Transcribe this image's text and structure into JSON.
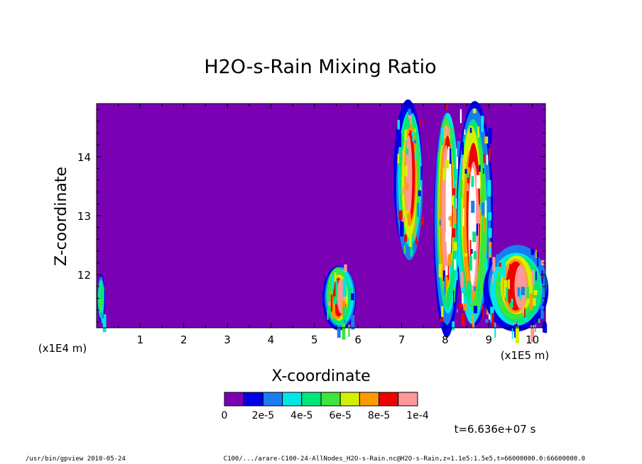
{
  "chart_data": {
    "type": "heatmap",
    "title": "H2O-s-Rain Mixing Ratio",
    "xlabel": "X-coordinate",
    "ylabel": "Z-coordinate",
    "x_unit_label": "(x1E5 m)",
    "y_unit_label": "(x1E4 m)",
    "xlim": [
      0,
      10.3
    ],
    "ylim": [
      11.1,
      14.9
    ],
    "x_ticks": [
      1,
      2,
      3,
      4,
      5,
      6,
      7,
      8,
      9,
      10
    ],
    "y_ticks": [
      12,
      13,
      14
    ],
    "colorbar": {
      "colors": [
        "#7a00b4",
        "#0000e6",
        "#1a7cf0",
        "#00e6e6",
        "#00e67a",
        "#3ce63c",
        "#d2f000",
        "#ff9a00",
        "#f00000",
        "#ff9898"
      ],
      "tick_labels": [
        "0",
        "2e-5",
        "4e-5",
        "6e-5",
        "8e-5",
        "1e-4"
      ],
      "above_max_color": "#ffffff"
    },
    "regions": [
      {
        "x": [
          0.05,
          0.15
        ],
        "z": [
          11.2,
          12.0
        ],
        "max_level": 5
      },
      {
        "x": [
          5.25,
          5.9
        ],
        "z": [
          11.1,
          12.2
        ],
        "max_level": 9
      },
      {
        "x": [
          6.9,
          7.45
        ],
        "z": [
          12.3,
          14.9
        ],
        "max_level": 9
      },
      {
        "x": [
          7.8,
          8.3
        ],
        "z": [
          11.1,
          14.9
        ],
        "max_level": 10
      },
      {
        "x": [
          8.3,
          9.0
        ],
        "z": [
          11.1,
          14.9
        ],
        "max_level": 10
      },
      {
        "x": [
          9.0,
          10.3
        ],
        "z": [
          11.1,
          12.5
        ],
        "max_level": 9
      }
    ],
    "time_label": "t=6.636e+07 s"
  },
  "footer": {
    "left": "/usr/bin/gpview  2010-05-24",
    "right": "C100/.../arare-C100-24-AllNodes_H2O-s-Rain.nc@H2O-s-Rain,z=1.1e5:1.5e5,t=66000000.0:66600000.0"
  }
}
